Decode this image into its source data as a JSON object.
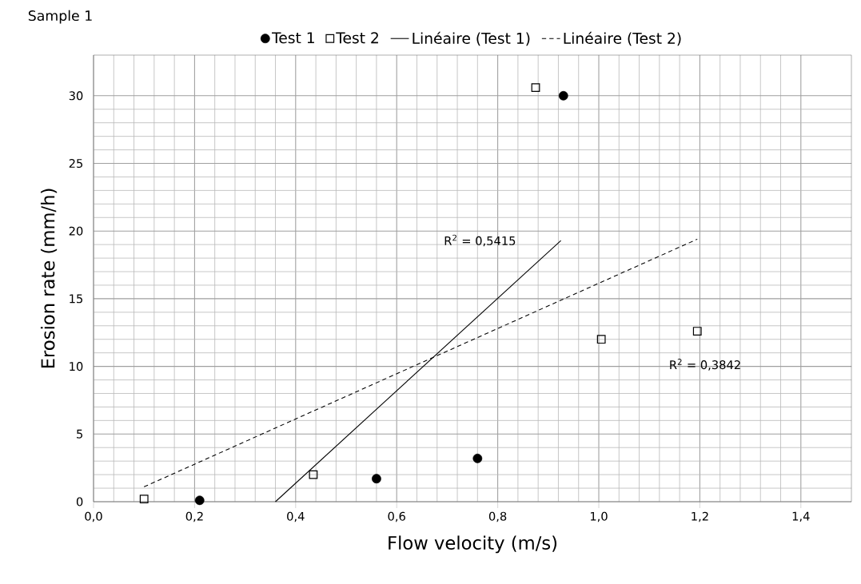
{
  "chart_data": {
    "type": "scatter",
    "title": "Sample 1",
    "xlabel": "Flow velocity (m/s)",
    "ylabel": "Erosion rate (mm/h)",
    "xlim": [
      0,
      1.5
    ],
    "ylim": [
      0,
      33
    ],
    "xticks": [
      {
        "value": 0,
        "label": "0,0"
      },
      {
        "value": 0.2,
        "label": "0,2"
      },
      {
        "value": 0.4,
        "label": "0,4"
      },
      {
        "value": 0.6,
        "label": "0,6"
      },
      {
        "value": 0.8,
        "label": "0,8"
      },
      {
        "value": 1.0,
        "label": "1,0"
      },
      {
        "value": 1.2,
        "label": "1,2"
      },
      {
        "value": 1.4,
        "label": "1,4"
      }
    ],
    "yticks": [
      0,
      5,
      10,
      15,
      20,
      25,
      30
    ],
    "grid": true,
    "legend": "top",
    "series": [
      {
        "name": "Test 1",
        "marker": "circle",
        "color": "#000000",
        "x": [
          0.21,
          0.56,
          0.76,
          0.93
        ],
        "values": [
          0.1,
          1.7,
          3.2,
          30.0
        ]
      },
      {
        "name": "Test 2",
        "marker": "square",
        "color": "#000000",
        "x": [
          0.1,
          0.435,
          0.875,
          1.005,
          1.195
        ],
        "values": [
          0.2,
          2.0,
          30.6,
          12.0,
          12.6
        ]
      },
      {
        "name": "Linéaire (Test 1)",
        "type": "line",
        "line_style": "solid",
        "color": "#000000",
        "x": [
          0.36,
          0.925
        ],
        "values": [
          0.0,
          19.3
        ]
      },
      {
        "name": "Linéaire (Test 2)",
        "type": "line",
        "line_style": "dashed",
        "color": "#000000",
        "x": [
          0.1,
          1.195
        ],
        "values": [
          1.1,
          19.4
        ]
      }
    ],
    "annotations": [
      "R$^{2}$ = 0,5415",
      "R$^{2}$ = 0,3842"
    ]
  }
}
